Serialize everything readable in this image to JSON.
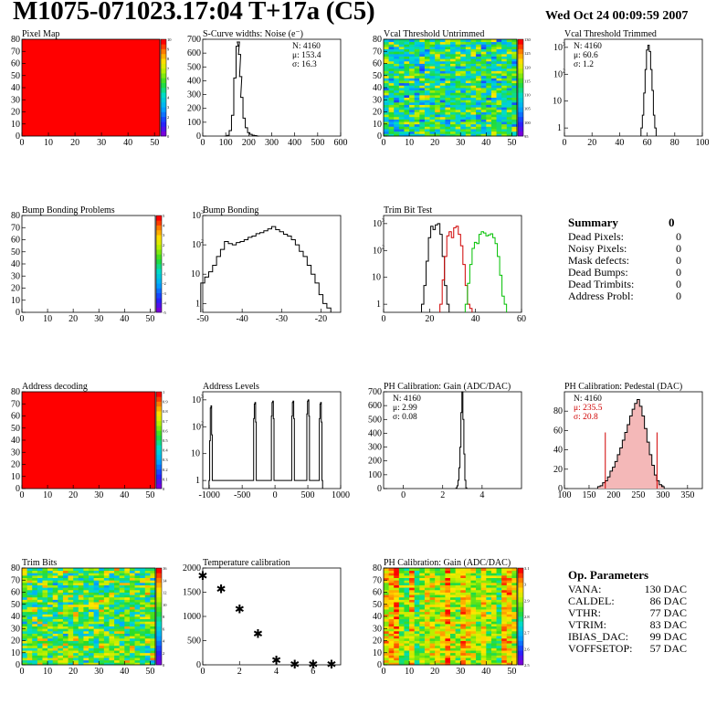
{
  "header": {
    "title": "M1075-071023.17:04 T+17a (C5)",
    "date": "Wed Oct 24 00:09:59 2007"
  },
  "colors": {
    "hist_black": "#000000",
    "hist_red": "#d00000",
    "hist_green": "#00c000",
    "frame": "#000000"
  },
  "chart_data": [
    {
      "id": "pixel-map",
      "type": "heatmap",
      "title": "Pixel Map",
      "xlim": [
        0,
        52
      ],
      "ylim": [
        0,
        80
      ],
      "xticks": [
        "0",
        "10",
        "20",
        "30",
        "40",
        "50"
      ],
      "yticks": [
        "0",
        "10",
        "20",
        "30",
        "40",
        "50",
        "60",
        "70",
        "80"
      ],
      "palette_scale": [
        0,
        1,
        2,
        3,
        4,
        5,
        6,
        7,
        8,
        9,
        10
      ],
      "fill": "uniform",
      "uniform_value": 10
    },
    {
      "id": "scurve-widths",
      "type": "bar",
      "title": "S-Curve widths: Noise (e⁻)",
      "xlim": [
        0,
        600
      ],
      "ylim": [
        0,
        700
      ],
      "xticks": [
        "0",
        "100",
        "200",
        "300",
        "400",
        "500",
        "600"
      ],
      "yticks": [
        "0",
        "100",
        "200",
        "300",
        "400",
        "500",
        "600",
        "700"
      ],
      "stats": [
        "N: 4160",
        "μ: 153.4",
        "σ: 16.3"
      ],
      "series": [
        {
          "color": "black",
          "x": [
            100,
            110,
            120,
            130,
            140,
            150,
            155,
            160,
            165,
            170,
            180,
            190,
            200,
            210,
            220,
            230,
            240
          ],
          "values": [
            0,
            5,
            40,
            150,
            420,
            650,
            680,
            590,
            430,
            280,
            130,
            60,
            25,
            12,
            6,
            3,
            0
          ]
        }
      ]
    },
    {
      "id": "vcal-untrimmed",
      "type": "heatmap",
      "title": "Vcal Threshold Untrimmed",
      "xlim": [
        0,
        52
      ],
      "ylim": [
        0,
        80
      ],
      "xticks": [
        "0",
        "10",
        "20",
        "30",
        "40",
        "50"
      ],
      "yticks": [
        "0",
        "10",
        "20",
        "30",
        "40",
        "50",
        "60",
        "70",
        "80"
      ],
      "palette_scale": [
        95,
        100,
        105,
        110,
        115,
        120,
        125,
        130
      ],
      "fill": "noise",
      "z_range": [
        95,
        130
      ],
      "z_center": 112
    },
    {
      "id": "vcal-trimmed",
      "type": "bar",
      "title": "Vcal Threshold Trimmed",
      "logy": true,
      "xlim": [
        0,
        100
      ],
      "ylim": [
        0.5,
        2000
      ],
      "xticks": [
        "0",
        "20",
        "40",
        "60",
        "80",
        "100"
      ],
      "stats": [
        "N: 4160",
        "μ: 60.6",
        "σ:  1.2"
      ],
      "series": [
        {
          "color": "black",
          "x": [
            56,
            57,
            58,
            59,
            60,
            61,
            62,
            63,
            64,
            65,
            66
          ],
          "values": [
            1,
            3,
            20,
            150,
            800,
            1200,
            700,
            150,
            25,
            3,
            1
          ]
        }
      ]
    },
    {
      "id": "bump-bonding-problems",
      "type": "heatmap",
      "title": "Bump Bonding Problems",
      "xlim": [
        0,
        52
      ],
      "ylim": [
        0,
        80
      ],
      "xticks": [
        "0",
        "10",
        "20",
        "30",
        "40",
        "50"
      ],
      "yticks": [
        "0",
        "10",
        "20",
        "30",
        "40",
        "50",
        "60",
        "70",
        "80"
      ],
      "palette_scale": [
        -5,
        -4,
        -3,
        -2,
        -1,
        0,
        1,
        2,
        3,
        4,
        5
      ],
      "fill": "empty"
    },
    {
      "id": "bump-bonding",
      "type": "bar",
      "title": "Bump Bonding",
      "logy": true,
      "xlim": [
        -50,
        -15
      ],
      "ylim": [
        0.5,
        1000
      ],
      "xticks": [
        "-50",
        "-40",
        "-30",
        "-20"
      ],
      "series": [
        {
          "color": "black",
          "x": [
            -50,
            -49,
            -48,
            -47,
            -46,
            -45,
            -44,
            -43,
            -42,
            -41,
            -40,
            -39,
            -38,
            -37,
            -36,
            -35,
            -34,
            -33,
            -32,
            -31,
            -30,
            -29,
            -28,
            -27,
            -26,
            -25,
            -24,
            -23,
            -22,
            -21,
            -20,
            -19,
            -18
          ],
          "values": [
            5,
            8,
            12,
            20,
            40,
            70,
            130,
            110,
            100,
            120,
            130,
            150,
            180,
            200,
            240,
            260,
            300,
            350,
            420,
            330,
            280,
            230,
            200,
            150,
            100,
            60,
            40,
            20,
            10,
            5,
            2,
            1,
            0.7
          ]
        }
      ]
    },
    {
      "id": "trim-bit-test",
      "type": "bar",
      "title": "Trim Bit Test",
      "logy": true,
      "xlim": [
        0,
        60
      ],
      "ylim": [
        0.5,
        2000
      ],
      "xticks": [
        "0",
        "20",
        "40",
        "60"
      ],
      "series": [
        {
          "color": "black",
          "x": [
            17,
            18,
            19,
            20,
            21,
            22,
            23,
            24,
            25,
            26,
            27,
            28
          ],
          "values": [
            1,
            5,
            40,
            300,
            800,
            600,
            900,
            1000,
            400,
            60,
            5,
            1
          ]
        },
        {
          "color": "red",
          "x": [
            25,
            26,
            27,
            28,
            29,
            30,
            31,
            32,
            33,
            34,
            35,
            36,
            37,
            38
          ],
          "values": [
            1,
            8,
            60,
            350,
            500,
            300,
            700,
            800,
            400,
            150,
            30,
            5,
            1,
            0.7
          ]
        },
        {
          "color": "green",
          "x": [
            36,
            37,
            38,
            39,
            40,
            41,
            42,
            43,
            44,
            45,
            46,
            47,
            48,
            49,
            50,
            51,
            52,
            53
          ],
          "values": [
            1,
            6,
            30,
            120,
            200,
            180,
            400,
            500,
            450,
            350,
            380,
            420,
            300,
            180,
            60,
            12,
            2,
            1
          ]
        }
      ]
    },
    {
      "id": "address-decoding",
      "type": "heatmap",
      "title": "Address decoding",
      "xlim": [
        0,
        52
      ],
      "ylim": [
        0,
        80
      ],
      "xticks": [
        "0",
        "10",
        "20",
        "30",
        "40",
        "50"
      ],
      "yticks": [
        "0",
        "10",
        "20",
        "30",
        "40",
        "50",
        "60",
        "70",
        "80"
      ],
      "palette_scale": [
        0,
        0.1,
        0.2,
        0.3,
        0.4,
        0.5,
        0.6,
        0.7,
        0.8,
        0.9,
        1
      ],
      "fill": "uniform",
      "uniform_value": 1
    },
    {
      "id": "address-levels",
      "type": "bar",
      "title": "Address Levels",
      "logy": true,
      "xlim": [
        -1100,
        1000
      ],
      "ylim": [
        0.5,
        2000
      ],
      "xticks": [
        "-1000",
        "-500",
        "0",
        "500",
        "1000"
      ],
      "series": [
        {
          "color": "black",
          "x": [
            -1000,
            -990,
            -980,
            -970,
            -960,
            -950,
            -330,
            -320,
            -310,
            -300,
            -290,
            -280,
            -60,
            -50,
            -40,
            -30,
            -20,
            -10,
            250,
            260,
            270,
            280,
            290,
            300,
            480,
            490,
            500,
            510,
            520,
            530,
            670,
            680,
            690,
            700,
            710,
            720
          ],
          "values": [
            1,
            30,
            500,
            600,
            50,
            1,
            1,
            200,
            700,
            800,
            150,
            1,
            1,
            250,
            800,
            900,
            200,
            1,
            1,
            250,
            800,
            900,
            200,
            1,
            1,
            300,
            900,
            1000,
            250,
            1,
            1,
            200,
            700,
            800,
            150,
            1
          ]
        }
      ]
    },
    {
      "id": "ph-gain",
      "type": "bar",
      "title": "PH Calibration: Gain (ADC/DAC)",
      "xlim": [
        -1,
        6
      ],
      "ylim": [
        0,
        700
      ],
      "xticks": [
        "0",
        "2",
        "4"
      ],
      "yticks": [
        "0",
        "100",
        "200",
        "300",
        "400",
        "500",
        "600",
        "700"
      ],
      "stats": [
        "N: 4160",
        "μ: 2.99",
        "σ: 0.08"
      ],
      "series": [
        {
          "color": "black",
          "x": [
            2.7,
            2.75,
            2.8,
            2.85,
            2.9,
            2.95,
            3.0,
            3.05,
            3.1,
            3.15,
            3.2
          ],
          "values": [
            5,
            20,
            60,
            150,
            300,
            550,
            700,
            500,
            250,
            60,
            5
          ]
        }
      ]
    },
    {
      "id": "ph-pedestal",
      "type": "bar",
      "title": "PH Calibration: Pedestal (DAC)",
      "xlim": [
        100,
        380
      ],
      "ylim": [
        0,
        100
      ],
      "xticks": [
        "100",
        "150",
        "200",
        "250",
        "300",
        "350"
      ],
      "yticks": [
        "0",
        "20",
        "40",
        "60",
        "80"
      ],
      "stats": [
        "N: 4160",
        "μ: 235.5",
        "σ: 20.8"
      ],
      "red_stats_from": 1,
      "lines_x": [
        183,
        288
      ],
      "series": [
        {
          "color": "black",
          "x": [
            170,
            175,
            180,
            185,
            190,
            195,
            200,
            205,
            210,
            215,
            220,
            225,
            230,
            235,
            240,
            245,
            250,
            255,
            260,
            265,
            270,
            275,
            280,
            285,
            290,
            295,
            300
          ],
          "values": [
            2,
            3,
            6,
            8,
            12,
            18,
            22,
            28,
            35,
            42,
            50,
            58,
            66,
            75,
            82,
            88,
            92,
            85,
            75,
            62,
            48,
            35,
            24,
            14,
            8,
            4,
            2
          ]
        }
      ]
    },
    {
      "id": "trim-bits",
      "type": "heatmap",
      "title": "Trim Bits",
      "xlim": [
        0,
        52
      ],
      "ylim": [
        0,
        80
      ],
      "xticks": [
        "0",
        "10",
        "20",
        "30",
        "40",
        "50"
      ],
      "yticks": [
        "0",
        "10",
        "20",
        "30",
        "40",
        "50",
        "60",
        "70",
        "80"
      ],
      "palette_scale": [
        0,
        2,
        4,
        6,
        8,
        10,
        12,
        14,
        16
      ],
      "fill": "noise",
      "z_range": [
        0,
        16
      ],
      "z_center": 9
    },
    {
      "id": "temperature-calibration",
      "type": "scatter",
      "title": "Temperature calibration",
      "xlim": [
        0,
        7.5
      ],
      "ylim": [
        0,
        2000
      ],
      "xticks": [
        "0",
        "2",
        "4",
        "6"
      ],
      "yticks": [
        "0",
        "500",
        "1000",
        "1500",
        "2000"
      ],
      "x": [
        0,
        1,
        2,
        3,
        4,
        5,
        6,
        7
      ],
      "y": [
        1850,
        1580,
        1160,
        650,
        100,
        20,
        20,
        20
      ]
    },
    {
      "id": "ph-gain-map",
      "type": "heatmap",
      "title": "PH Calibration: Gain (ADC/DAC)",
      "xlim": [
        0,
        52
      ],
      "ylim": [
        0,
        80
      ],
      "xticks": [
        "0",
        "10",
        "20",
        "30",
        "40",
        "50"
      ],
      "yticks": [
        "0",
        "10",
        "20",
        "30",
        "40",
        "50",
        "60",
        "70",
        "80"
      ],
      "palette_scale": [
        2.5,
        2.6,
        2.7,
        2.8,
        2.9,
        3.0,
        3.1
      ],
      "fill": "columns",
      "z_range": [
        2.5,
        3.1
      ],
      "z_center": 3.0
    }
  ],
  "summary": {
    "title": "Summary",
    "total": "0",
    "rows": [
      {
        "label": "Dead Pixels:",
        "value": "0"
      },
      {
        "label": "Noisy Pixels:",
        "value": "0"
      },
      {
        "label": "Mask defects:",
        "value": "0"
      },
      {
        "label": "Dead Bumps:",
        "value": "0"
      },
      {
        "label": "Dead Trimbits:",
        "value": "0"
      },
      {
        "label": "Address Probl:",
        "value": "0"
      }
    ]
  },
  "op_parameters": {
    "title": "Op. Parameters",
    "rows": [
      {
        "label": "VANA:",
        "value": "130 DAC"
      },
      {
        "label": "CALDEL:",
        "value": "86 DAC"
      },
      {
        "label": "VTHR:",
        "value": "77 DAC"
      },
      {
        "label": "VTRIM:",
        "value": "83 DAC"
      },
      {
        "label": "IBIAS_DAC:",
        "value": "99 DAC"
      },
      {
        "label": "VOFFSETOP:",
        "value": "57 DAC"
      }
    ]
  }
}
